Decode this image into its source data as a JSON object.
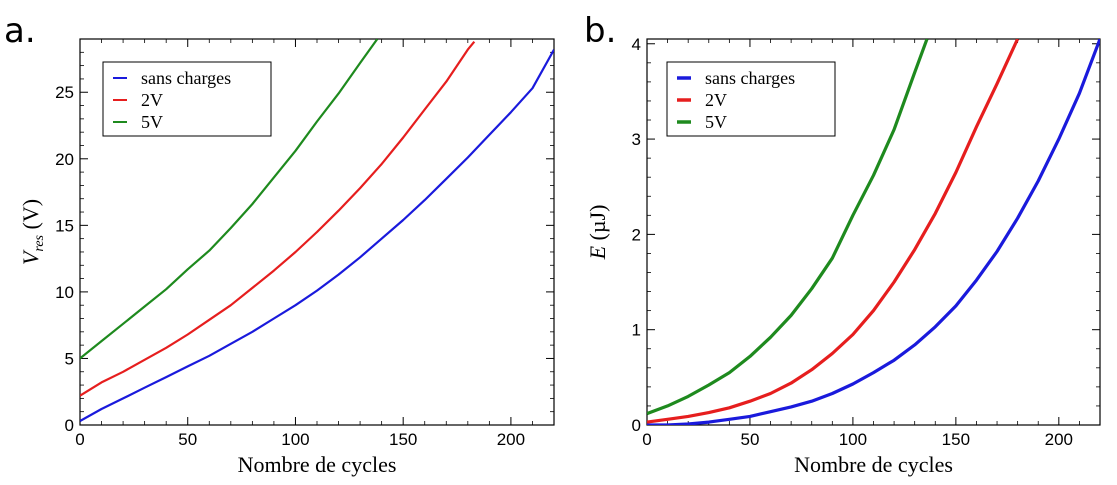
{
  "chart_data": [
    {
      "type": "line",
      "panel_label": "a.",
      "xlabel": "Nombre de cycles",
      "ylabel_main": "V",
      "ylabel_sub": "res",
      "ylabel_unit": "(V)",
      "xlim": [
        0,
        220
      ],
      "ylim": [
        0,
        29
      ],
      "xticks": [
        0,
        50,
        100,
        150,
        200
      ],
      "yticks": [
        0,
        5,
        10,
        15,
        20,
        25
      ],
      "grid": false,
      "legend_position": "top-left",
      "series": [
        {
          "name": "sans charges",
          "color": "#1a1adc",
          "x": [
            0,
            10,
            20,
            30,
            40,
            50,
            60,
            70,
            80,
            90,
            100,
            110,
            120,
            130,
            140,
            150,
            160,
            170,
            180,
            190,
            200,
            210,
            220
          ],
          "y": [
            0.3,
            1.2,
            2.0,
            2.8,
            3.6,
            4.4,
            5.2,
            6.1,
            7.0,
            8.0,
            9.0,
            10.1,
            11.3,
            12.6,
            14.0,
            15.4,
            16.9,
            18.5,
            20.1,
            21.8,
            23.5,
            25.3,
            28.2
          ]
        },
        {
          "name": "2V",
          "color": "#e61e1e",
          "x": [
            0,
            10,
            20,
            30,
            40,
            50,
            60,
            70,
            80,
            90,
            100,
            110,
            120,
            130,
            140,
            150,
            160,
            170,
            180,
            183
          ],
          "y": [
            2.2,
            3.2,
            4.0,
            4.9,
            5.8,
            6.8,
            7.9,
            9.0,
            10.3,
            11.6,
            13.0,
            14.5,
            16.1,
            17.8,
            19.6,
            21.6,
            23.7,
            25.8,
            28.2,
            28.8
          ]
        },
        {
          "name": "5V",
          "color": "#1e8a1e",
          "x": [
            0,
            10,
            20,
            30,
            40,
            50,
            60,
            70,
            80,
            90,
            100,
            110,
            120,
            130,
            138
          ],
          "y": [
            5.0,
            6.3,
            7.6,
            8.9,
            10.2,
            11.7,
            13.1,
            14.8,
            16.6,
            18.6,
            20.6,
            22.8,
            24.9,
            27.2,
            29.0
          ]
        }
      ]
    },
    {
      "type": "line",
      "panel_label": "b.",
      "xlabel": "Nombre de cycles",
      "ylabel_main": "E",
      "ylabel_sub": "",
      "ylabel_unit": "(µJ)",
      "xlim": [
        0,
        220
      ],
      "ylim": [
        0,
        4.05
      ],
      "xticks": [
        0,
        50,
        100,
        150,
        200
      ],
      "yticks": [
        0,
        1,
        2,
        3,
        4
      ],
      "grid": false,
      "legend_position": "top-left",
      "series": [
        {
          "name": "sans charges",
          "color": "#1a1adc",
          "x": [
            0,
            10,
            20,
            30,
            40,
            50,
            60,
            70,
            80,
            90,
            100,
            110,
            120,
            130,
            140,
            150,
            160,
            170,
            180,
            190,
            200,
            210,
            220
          ],
          "y": [
            0.0,
            0.0,
            0.01,
            0.03,
            0.06,
            0.09,
            0.14,
            0.19,
            0.25,
            0.33,
            0.43,
            0.55,
            0.68,
            0.84,
            1.03,
            1.25,
            1.52,
            1.82,
            2.17,
            2.56,
            3.0,
            3.48,
            4.05
          ]
        },
        {
          "name": "2V",
          "color": "#e61e1e",
          "x": [
            0,
            10,
            20,
            30,
            40,
            50,
            60,
            70,
            80,
            90,
            100,
            110,
            120,
            130,
            140,
            150,
            160,
            170,
            180
          ],
          "y": [
            0.03,
            0.06,
            0.09,
            0.13,
            0.18,
            0.25,
            0.33,
            0.44,
            0.58,
            0.75,
            0.95,
            1.2,
            1.5,
            1.84,
            2.22,
            2.65,
            3.13,
            3.58,
            4.05
          ]
        },
        {
          "name": "5V",
          "color": "#1e8a1e",
          "x": [
            0,
            10,
            20,
            30,
            40,
            50,
            60,
            70,
            80,
            90,
            100,
            110,
            120,
            130,
            136
          ],
          "y": [
            0.12,
            0.2,
            0.3,
            0.42,
            0.55,
            0.72,
            0.92,
            1.15,
            1.43,
            1.75,
            2.2,
            2.62,
            3.1,
            3.7,
            4.05
          ]
        }
      ]
    }
  ]
}
